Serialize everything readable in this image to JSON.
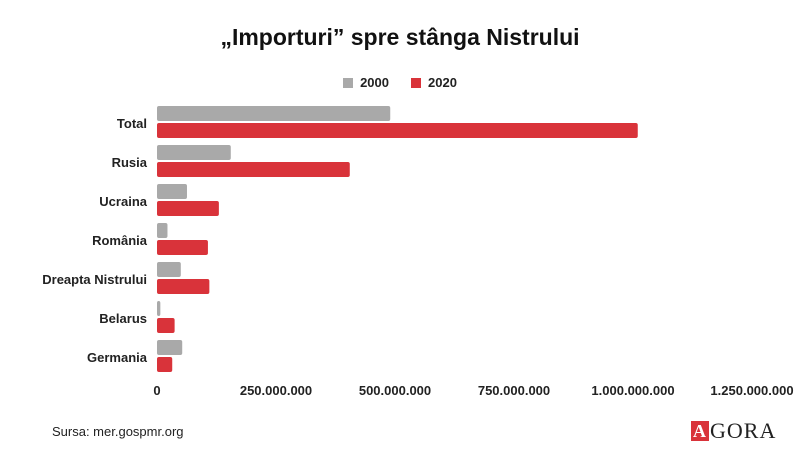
{
  "title": "„Importuri” spre stânga Nistrului",
  "source": "Sursa: mer.gospmr.org",
  "logo": {
    "mark": "A",
    "text": "GORA"
  },
  "colors": {
    "series_2000": "#a9a9a9",
    "series_2020": "#d9333a"
  },
  "chart_data": {
    "type": "bar",
    "orientation": "horizontal",
    "categories": [
      "Total",
      "Rusia",
      "Ucraina",
      "România",
      "Dreapta Nistrului",
      "Belarus",
      "Germania"
    ],
    "series": [
      {
        "name": "2000",
        "values": [
          490000000,
          155000000,
          63000000,
          22000000,
          50000000,
          7000000,
          53000000
        ]
      },
      {
        "name": "2020",
        "values": [
          1010000000,
          405000000,
          130000000,
          107000000,
          110000000,
          37000000,
          32000000
        ]
      }
    ],
    "xlim": [
      0,
      1250000000
    ],
    "xticks": [
      "0",
      "250.000.000",
      "500.000.000",
      "750.000.000",
      "1.000.000.000",
      "1.250.000.000"
    ],
    "legend": "top",
    "grid": false
  }
}
